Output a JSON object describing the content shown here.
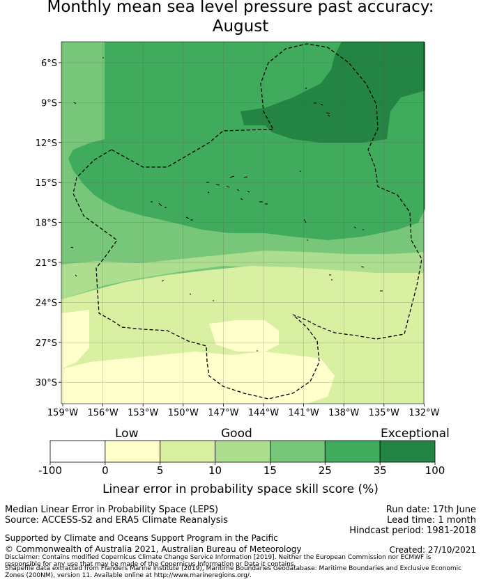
{
  "title_line1": "Monthly mean sea level pressure past accuracy:",
  "title_line2": "August",
  "map": {
    "lat_labels": [
      "6°S",
      "9°S",
      "12°S",
      "15°S",
      "18°S",
      "21°S",
      "24°S",
      "27°S",
      "30°S"
    ],
    "lon_labels": [
      "159°W",
      "156°W",
      "153°W",
      "150°W",
      "147°W",
      "144°W",
      "141°W",
      "138°W",
      "135°W",
      "132°W"
    ]
  },
  "colorbar": {
    "category_low": "Low",
    "category_good": "Good",
    "category_exceptional": "Exceptional",
    "ticks": [
      "-100",
      "0",
      "5",
      "10",
      "15",
      "25",
      "35",
      "100"
    ],
    "colors": [
      "#ffffff",
      "#ffffcc",
      "#d9f0a3",
      "#addd8e",
      "#78c679",
      "#41ab5d",
      "#238443"
    ],
    "label": "Linear error in probability space skill score (%)"
  },
  "footer": {
    "method": "Median Linear Error in Probability Space (LEPS)",
    "source": "Source: ACCESS-S2 and ERA5 Climate Reanalysis",
    "run_date": "Run date: 17th June",
    "lead_time": "Lead time: 1 month",
    "hindcast": "Hindcast period: 1981-2018",
    "support": "Supported by Climate and Oceans Support Program in the Pacific",
    "copyright": "© Commonwealth of Australia 2021, Australian Bureau of Meteorology",
    "created": "Created: 27/10/2021",
    "disclaimer1": "Disclaimer: Contains modified Copernicus Climate Change Service Information [2019]. Neither the European Commission nor ECMWF is",
    "disclaimer2": "responsible for any use that may be made of the Copernicus Information or Data it contains.",
    "disclaimer3": "Shapefile data extracted from Flanders Marine Institute (2019), Maritime Boundaries Geodatabase: Maritime Boundaries and Exclusive Economic",
    "disclaimer4": "Zones (200NM), version 11. Available online at http://www.marineregions.org/."
  }
}
